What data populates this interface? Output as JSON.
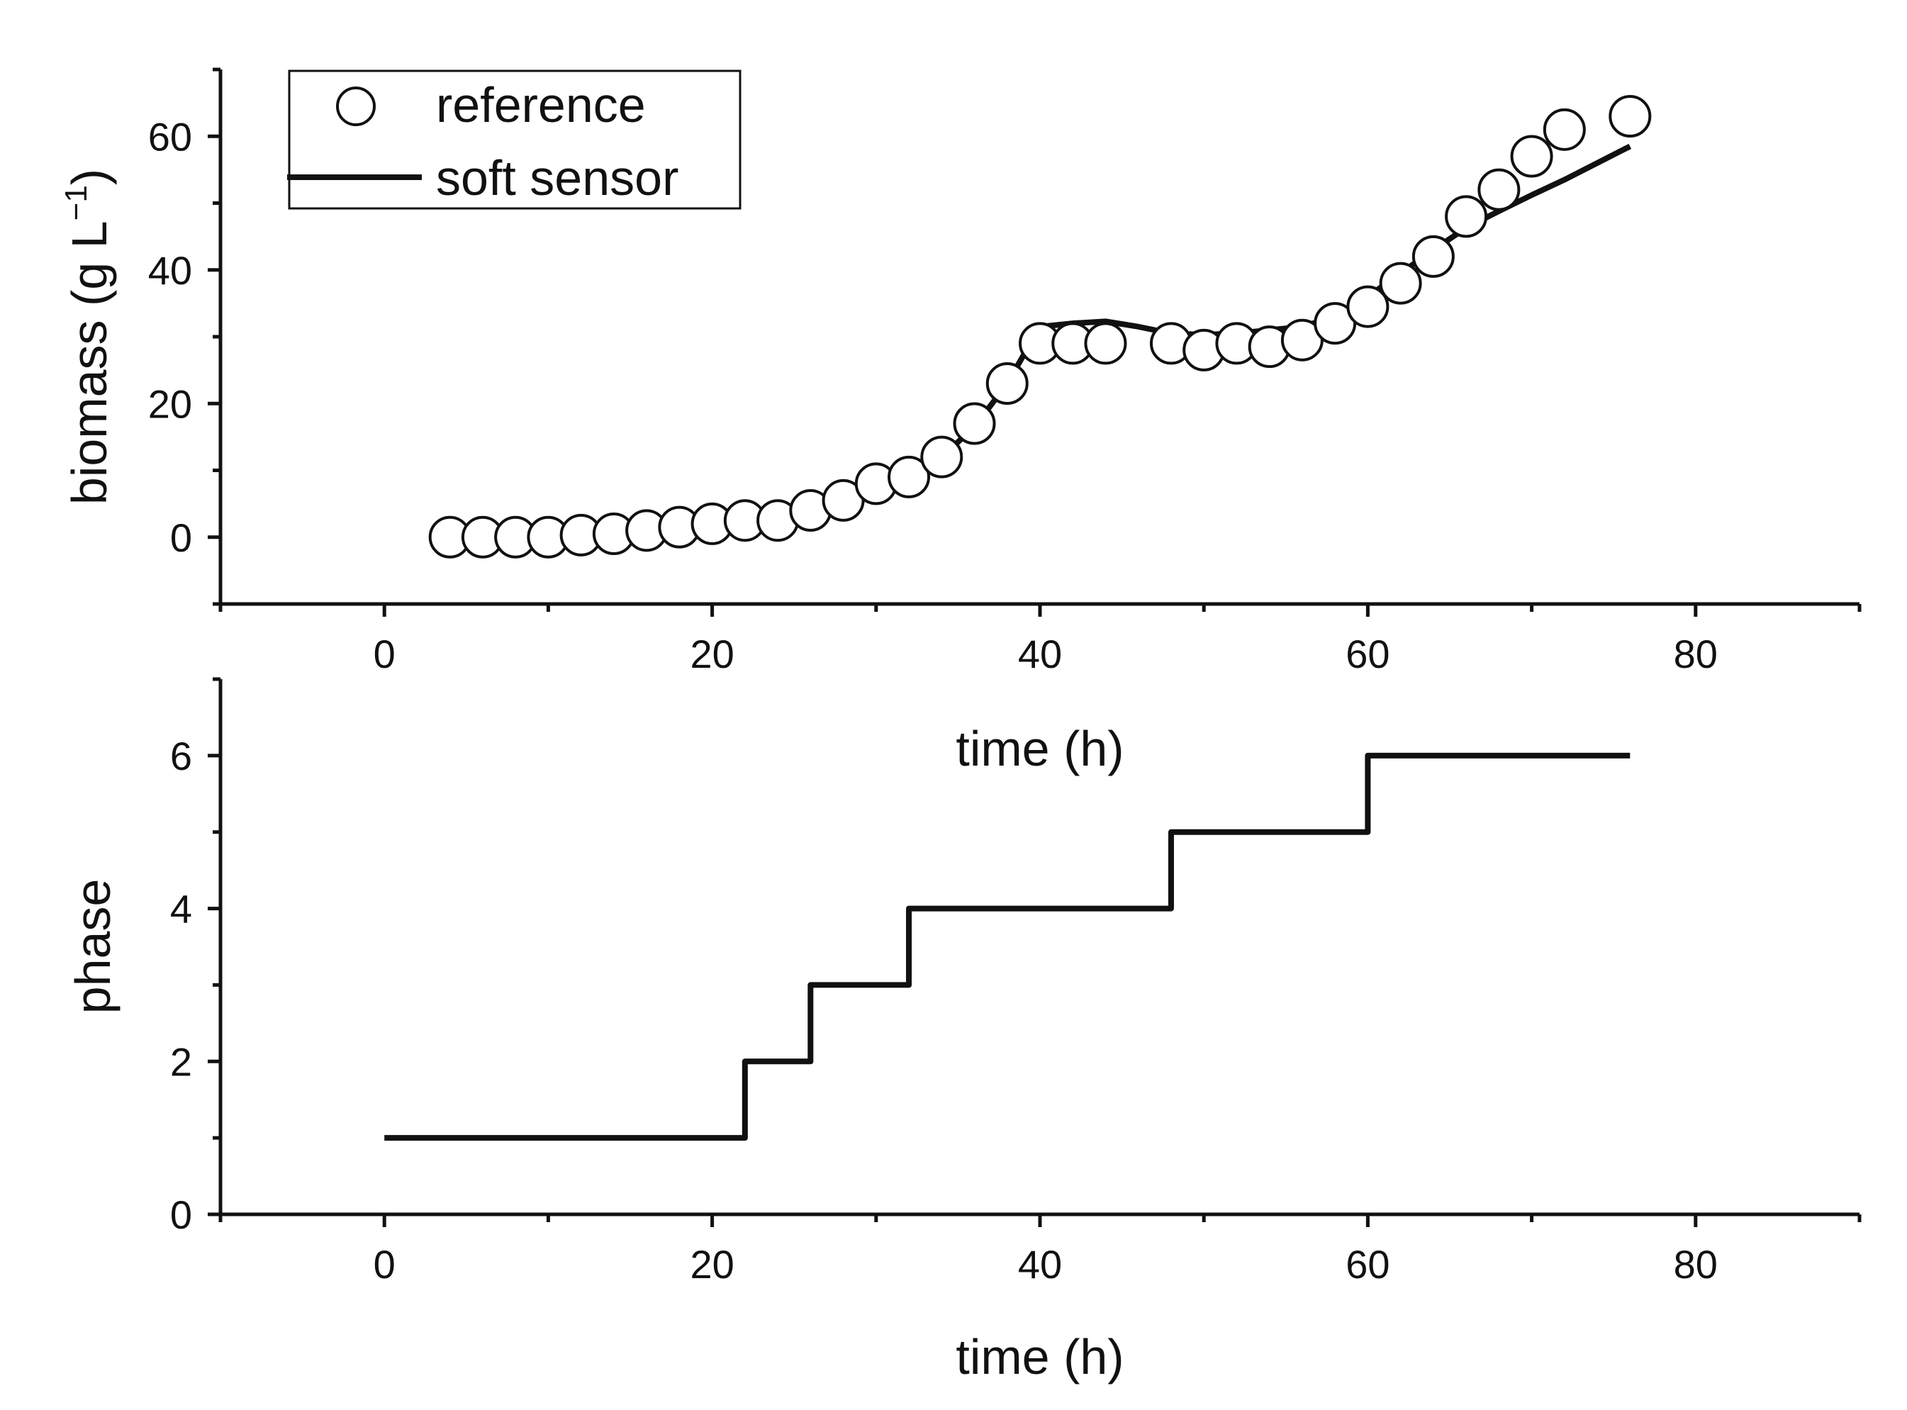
{
  "chart_data": [
    {
      "type": "line",
      "title": "",
      "xlabel": "time (h)",
      "ylabel": "biomass (g L",
      "ylabel_superscript": "−1",
      "ylabel_close": ")",
      "xlim": [
        -10,
        90
      ],
      "ylim": [
        -10,
        70
      ],
      "xticks": [
        0,
        20,
        40,
        60,
        80
      ],
      "yticks": [
        0,
        20,
        40,
        60
      ],
      "grid": false,
      "legend_position": "top-left",
      "series": [
        {
          "name": "reference",
          "kind": "scatter",
          "marker": "open-circle",
          "x": [
            4,
            6,
            8,
            10,
            12,
            14,
            16,
            18,
            20,
            22,
            24,
            26,
            28,
            30,
            32,
            34,
            36,
            38,
            40,
            42,
            44,
            48,
            50,
            52,
            54,
            56,
            58,
            60,
            62,
            64,
            66,
            68,
            70,
            72,
            76
          ],
          "y": [
            0,
            0,
            0,
            0,
            0.3,
            0.5,
            1,
            1.5,
            2,
            2.5,
            2.5,
            4,
            5.5,
            8,
            9,
            12,
            17,
            23,
            29,
            29,
            29,
            29,
            28,
            29,
            28.5,
            29.5,
            32,
            34.5,
            38,
            42,
            48,
            52,
            57,
            61,
            63
          ]
        },
        {
          "name": "soft sensor",
          "kind": "line",
          "x": [
            4,
            8,
            12,
            16,
            20,
            22,
            24,
            26,
            28,
            30,
            32,
            34,
            36,
            38,
            40,
            42,
            44,
            46,
            48,
            50,
            52,
            54,
            56,
            58,
            60,
            62,
            64,
            66,
            68,
            70,
            72,
            74,
            76
          ],
          "y": [
            0.8,
            0.9,
            1.0,
            1.2,
            1.4,
            3.6,
            4.2,
            5.0,
            6.1,
            7.4,
            9.2,
            12.0,
            16.5,
            23.0,
            31.5,
            32.0,
            32.3,
            31.5,
            30.5,
            30.3,
            30.5,
            31.0,
            31.5,
            33.0,
            36.0,
            39.5,
            43.0,
            46.3,
            48.8,
            51.2,
            53.5,
            56.0,
            58.5
          ]
        }
      ]
    },
    {
      "type": "line",
      "title": "",
      "xlabel": "time (h)",
      "ylabel": "phase",
      "xlim": [
        -10,
        90
      ],
      "ylim": [
        0,
        7
      ],
      "xticks": [
        0,
        20,
        40,
        60,
        80
      ],
      "yticks": [
        0,
        2,
        4,
        6
      ],
      "grid": false,
      "series": [
        {
          "name": "phase",
          "kind": "step",
          "x": [
            0,
            22,
            22,
            26,
            26,
            32,
            32,
            48,
            48,
            60,
            60,
            76
          ],
          "y": [
            1,
            1,
            2,
            2,
            3,
            3,
            4,
            4,
            5,
            5,
            6,
            6
          ]
        }
      ]
    }
  ]
}
